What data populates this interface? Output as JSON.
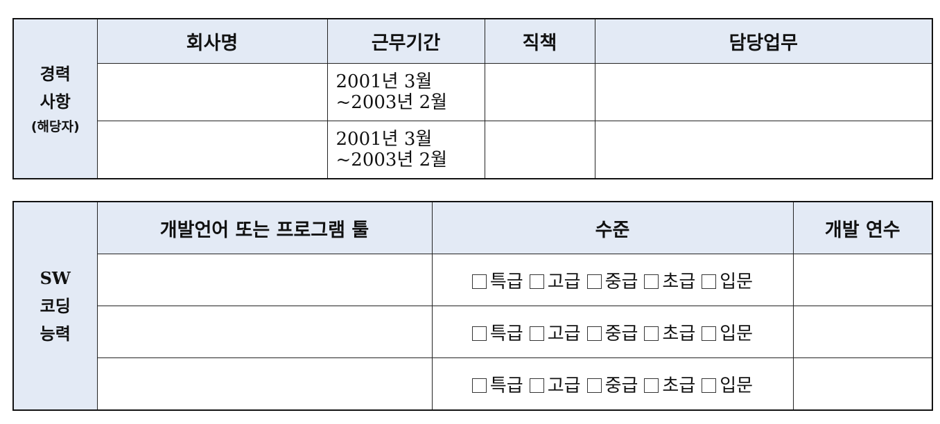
{
  "career": {
    "side_label": [
      "경력",
      "사항"
    ],
    "side_sub": "(해당자)",
    "headers": [
      "회사명",
      "근무기간",
      "직책",
      "담당업무"
    ],
    "rows": [
      {
        "company": "",
        "period": [
          "2001년 3월",
          "~2003년 2월"
        ],
        "title": "",
        "duty": ""
      },
      {
        "company": "",
        "period": [
          "2001년 3월",
          "~2003년 2월"
        ],
        "title": "",
        "duty": ""
      }
    ]
  },
  "sw": {
    "side_label": [
      "SW",
      "코딩",
      "능력"
    ],
    "headers": [
      "개발언어 또는 프로그램 툴",
      "수준",
      "개발 연수"
    ],
    "levels": [
      "특급",
      "고급",
      "중급",
      "초급",
      "입문"
    ],
    "rows": [
      {
        "language": "",
        "years": ""
      },
      {
        "language": "",
        "years": ""
      },
      {
        "language": "",
        "years": ""
      }
    ]
  }
}
